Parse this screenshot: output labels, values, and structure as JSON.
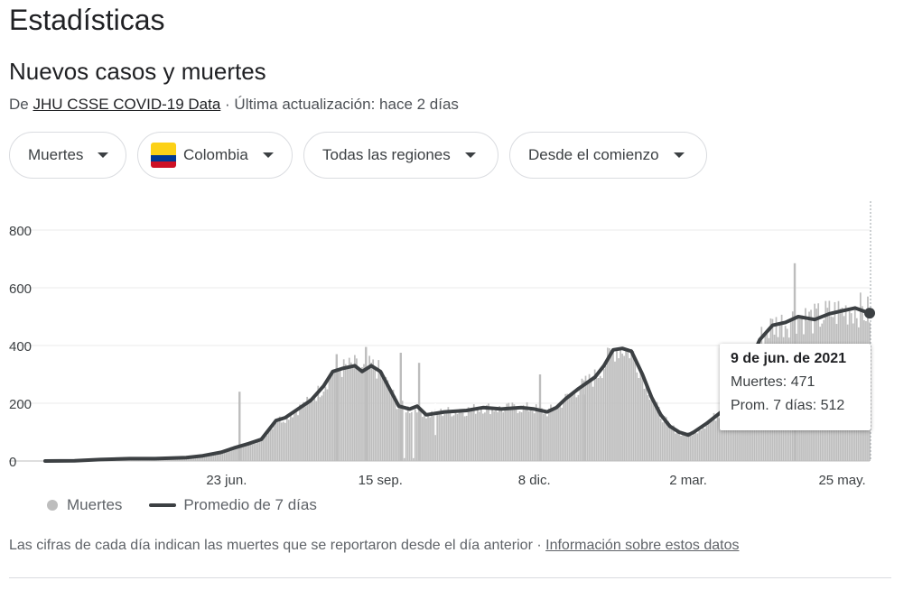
{
  "page": {
    "heading": "Estadísticas",
    "subheading": "Nuevos casos y muertes",
    "source_prefix": "De ",
    "source_link": "JHU CSSE COVID-19 Data",
    "source_suffix": " · Última actualización: hace 2 días"
  },
  "filters": {
    "metric": "Muertes",
    "country": "Colombia",
    "region": "Todas las regiones",
    "period": "Desde el comienzo"
  },
  "flag_colors": [
    "#fcd116",
    "#003893",
    "#ce1126"
  ],
  "tooltip": {
    "date": "9 de jun. de 2021",
    "deaths": "Muertes: 471",
    "avg": "Prom. 7 días: 512"
  },
  "legend": {
    "deaths": "Muertes",
    "avg": "Promedio de 7 días"
  },
  "footer": {
    "text": "Las cifras de cada día indican las muertes que se reportaron desde el día anterior",
    "separator": " · ",
    "link": "Información sobre estos datos"
  },
  "chart_data": {
    "type": "bar",
    "y_ticks": [
      0,
      200,
      400,
      600,
      800
    ],
    "ylim": [
      0,
      900
    ],
    "x_tick_labels": [
      "23 jun.",
      "15 sep.",
      "8 dic.",
      "2 mar.",
      "25 may."
    ],
    "x_tick_dates": [
      "2020-06-23",
      "2020-09-15",
      "2020-12-08",
      "2021-03-02",
      "2021-05-25"
    ],
    "x_range": [
      "2020-03-16",
      "2021-06-09"
    ],
    "colors": {
      "bars": "#bdbdbd",
      "line": "#3c4043"
    },
    "series": [
      {
        "name": "Promedio de 7 días",
        "points": [
          [
            "2020-03-16",
            0
          ],
          [
            "2020-04-01",
            1
          ],
          [
            "2020-04-15",
            5
          ],
          [
            "2020-05-01",
            8
          ],
          [
            "2020-05-15",
            8
          ],
          [
            "2020-06-01",
            12
          ],
          [
            "2020-06-10",
            18
          ],
          [
            "2020-06-20",
            30
          ],
          [
            "2020-06-27",
            45
          ],
          [
            "2020-07-05",
            60
          ],
          [
            "2020-07-12",
            75
          ],
          [
            "2020-07-20",
            140
          ],
          [
            "2020-07-25",
            150
          ],
          [
            "2020-08-01",
            180
          ],
          [
            "2020-08-08",
            210
          ],
          [
            "2020-08-15",
            260
          ],
          [
            "2020-08-20",
            310
          ],
          [
            "2020-08-25",
            320
          ],
          [
            "2020-09-01",
            330
          ],
          [
            "2020-09-05",
            310
          ],
          [
            "2020-09-10",
            330
          ],
          [
            "2020-09-15",
            310
          ],
          [
            "2020-09-20",
            250
          ],
          [
            "2020-09-25",
            190
          ],
          [
            "2020-10-01",
            180
          ],
          [
            "2020-10-05",
            190
          ],
          [
            "2020-10-10",
            160
          ],
          [
            "2020-10-20",
            170
          ],
          [
            "2020-11-01",
            175
          ],
          [
            "2020-11-10",
            185
          ],
          [
            "2020-11-20",
            180
          ],
          [
            "2020-12-01",
            185
          ],
          [
            "2020-12-08",
            180
          ],
          [
            "2020-12-15",
            170
          ],
          [
            "2020-12-20",
            185
          ],
          [
            "2020-12-25",
            215
          ],
          [
            "2021-01-01",
            250
          ],
          [
            "2021-01-10",
            290
          ],
          [
            "2021-01-15",
            330
          ],
          [
            "2021-01-20",
            385
          ],
          [
            "2021-01-25",
            390
          ],
          [
            "2021-01-30",
            380
          ],
          [
            "2021-02-05",
            300
          ],
          [
            "2021-02-10",
            220
          ],
          [
            "2021-02-15",
            160
          ],
          [
            "2021-02-20",
            120
          ],
          [
            "2021-02-25",
            100
          ],
          [
            "2021-03-02",
            90
          ],
          [
            "2021-03-05",
            100
          ],
          [
            "2021-03-12",
            130
          ],
          [
            "2021-03-20",
            170
          ],
          [
            "2021-03-27",
            220
          ],
          [
            "2021-04-03",
            320
          ],
          [
            "2021-04-10",
            420
          ],
          [
            "2021-04-17",
            470
          ],
          [
            "2021-04-24",
            480
          ],
          [
            "2021-05-01",
            500
          ],
          [
            "2021-05-10",
            490
          ],
          [
            "2021-05-18",
            510
          ],
          [
            "2021-05-25",
            520
          ],
          [
            "2021-06-01",
            530
          ],
          [
            "2021-06-09",
            512
          ]
        ]
      }
    ],
    "spikes": [
      [
        "2020-06-30",
        240
      ],
      [
        "2020-08-22",
        370
      ],
      [
        "2020-09-07",
        395
      ],
      [
        "2020-09-26",
        375
      ],
      [
        "2020-10-06",
        340
      ],
      [
        "2020-12-11",
        300
      ],
      [
        "2021-01-04",
        230
      ],
      [
        "2021-04-29",
        685
      ]
    ],
    "dips": [
      [
        "2020-09-28",
        10
      ],
      [
        "2020-10-03",
        10
      ],
      [
        "2020-10-15",
        90
      ]
    ]
  }
}
